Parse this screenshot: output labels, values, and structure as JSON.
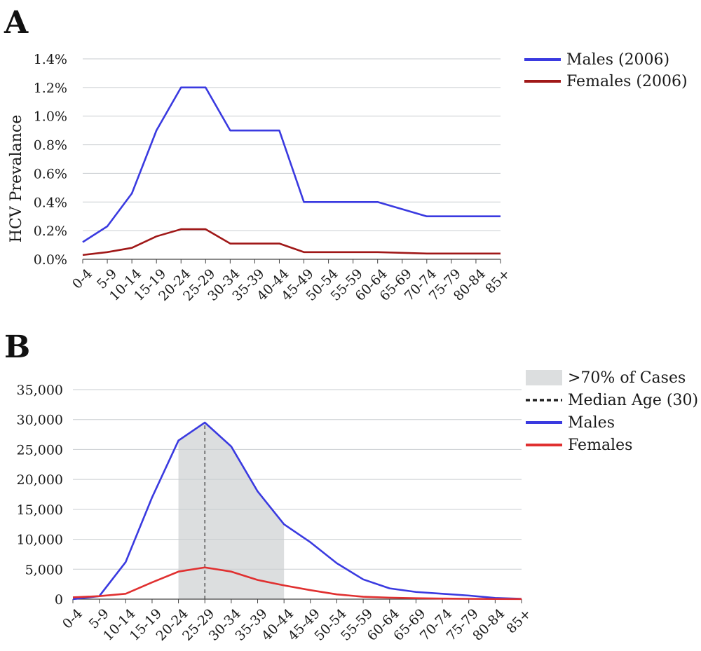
{
  "panel_labels": {
    "a": "A",
    "b": "B"
  },
  "colors": {
    "males_a": "#3a3ae0",
    "females_a": "#a01818",
    "males_b": "#3a3ae0",
    "females_b": "#e03030",
    "shade": "#dcdedf",
    "median": "#555555"
  },
  "chart_data": [
    {
      "type": "line",
      "title": "",
      "xlabel": "",
      "ylabel": "HCV Prevalance",
      "categories": [
        "0-4",
        "5-9",
        "10-14",
        "15-19",
        "20-24",
        "25-29",
        "30-34",
        "35-39",
        "40-44",
        "45-49",
        "50-54",
        "55-59",
        "60-64",
        "65-69",
        "70-74",
        "75-79",
        "80-84",
        "85+"
      ],
      "ylim": [
        0,
        1.4
      ],
      "yticks": [
        "0.0%",
        "0.2%",
        "0.4%",
        "0.6%",
        "0.8%",
        "1.0%",
        "1.2%",
        "1.4%"
      ],
      "grid": true,
      "legend_position": "top-right",
      "series": [
        {
          "name": "Males (2006)",
          "color_key": "males_a",
          "values": [
            0.12,
            0.23,
            0.46,
            0.9,
            1.2,
            1.2,
            0.9,
            0.9,
            0.9,
            0.4,
            0.4,
            0.4,
            0.4,
            0.35,
            0.3,
            0.3,
            0.3,
            0.3
          ]
        },
        {
          "name": "Females (2006)",
          "color_key": "females_a",
          "values": [
            0.03,
            0.05,
            0.08,
            0.16,
            0.21,
            0.21,
            0.11,
            0.11,
            0.11,
            0.05,
            0.05,
            0.05,
            0.05,
            0.045,
            0.04,
            0.04,
            0.04,
            0.04
          ]
        }
      ]
    },
    {
      "type": "line",
      "title": "",
      "xlabel": "",
      "ylabel": "",
      "categories": [
        "0-4",
        "5-9",
        "10-14",
        "15-19",
        "20-24",
        "25-29",
        "30-34",
        "35-39",
        "40-44",
        "45-49",
        "50-54",
        "55-59",
        "60-64",
        "65-69",
        "70-74",
        "75-79",
        "80-84",
        "85+"
      ],
      "ylim": [
        0,
        35000
      ],
      "yticks": [
        "0",
        "5,000",
        "10,000",
        "15,000",
        "20,000",
        "25,000",
        "30,000",
        "35,000"
      ],
      "grid": true,
      "legend_position": "top-right",
      "shaded_range": {
        "name": ">70% of Cases",
        "from": "20-24",
        "to": "40-44"
      },
      "median_line": {
        "name": "Median Age (30)",
        "at": "25-29"
      },
      "series": [
        {
          "name": "Males",
          "color_key": "males_b",
          "values": [
            0,
            500,
            6200,
            17000,
            26500,
            29500,
            25500,
            18000,
            12500,
            9500,
            6000,
            3300,
            1800,
            1200,
            900,
            600,
            200,
            50
          ]
        },
        {
          "name": "Females",
          "color_key": "females_b",
          "values": [
            300,
            500,
            900,
            2800,
            4600,
            5300,
            4600,
            3200,
            2300,
            1500,
            800,
            400,
            250,
            150,
            100,
            60,
            30,
            20
          ]
        }
      ]
    }
  ]
}
